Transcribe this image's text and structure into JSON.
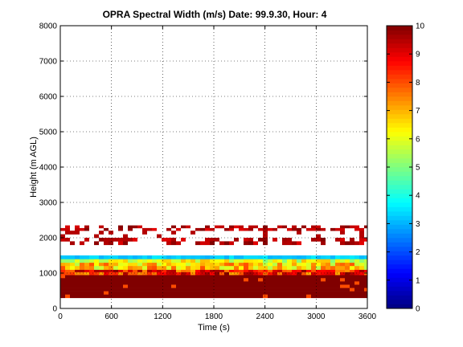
{
  "chart_data": {
    "type": "heatmap",
    "title": "OPRA Spectral Width (m/s)  Date: 99.9.30, Hour: 4",
    "xlabel": "Time (s)",
    "ylabel": "Height (m AGL)",
    "xlim": [
      0,
      3600
    ],
    "ylim": [
      0,
      8000
    ],
    "x_ticks": [
      0,
      600,
      1200,
      1800,
      2400,
      3000,
      3600
    ],
    "x_tick_labels": [
      "0",
      "600",
      "1200",
      "1800",
      "2400",
      "3000",
      "3600"
    ],
    "y_ticks": [
      0,
      1000,
      2000,
      3000,
      4000,
      5000,
      6000,
      7000,
      8000
    ],
    "y_tick_labels": [
      "0",
      "1000",
      "2000",
      "3000",
      "4000",
      "5000",
      "6000",
      "7000",
      "8000"
    ],
    "grid": true,
    "colorbar": {
      "range": [
        0,
        10
      ],
      "ticks": [
        0,
        1,
        2,
        3,
        4,
        5,
        6,
        7,
        8,
        9,
        10
      ],
      "tick_labels": [
        "0",
        "1",
        "2",
        "3",
        "4",
        "5",
        "6",
        "7",
        "8",
        "9",
        "10"
      ],
      "colormap": "jet",
      "colors": [
        "#00008F",
        "#0000FF",
        "#0080FF",
        "#00FFFF",
        "#80FF80",
        "#FFFF00",
        "#FF8000",
        "#FF0000",
        "#800000"
      ]
    },
    "bands": [
      {
        "height_range": [
          300,
          950
        ],
        "value": 10,
        "note": "continuous"
      },
      {
        "height_range": [
          950,
          1100
        ],
        "value": 8.5,
        "note": "mixed red/orange"
      },
      {
        "height_range": [
          1100,
          1300
        ],
        "value": 7,
        "note": "orange/yellow"
      },
      {
        "height_range": [
          1300,
          1400
        ],
        "value": 6,
        "note": "yellow/green"
      },
      {
        "height_range": [
          1400,
          1500
        ],
        "value": 3,
        "note": "cyan"
      },
      {
        "height_range": [
          1800,
          2000
        ],
        "value": 10,
        "note": "intermittent"
      },
      {
        "height_range": [
          2000,
          2200
        ],
        "value": 10,
        "note": "sparse"
      },
      {
        "height_range": [
          2200,
          2350
        ],
        "value": 9,
        "note": "intermittent"
      }
    ]
  }
}
